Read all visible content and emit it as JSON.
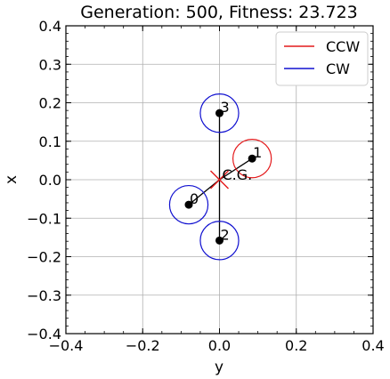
{
  "chart_data": {
    "type": "scatter",
    "title": "Generation: 500, Fitness: 23.723",
    "xlabel": "y",
    "ylabel": "x",
    "xlim": [
      -0.4,
      0.4
    ],
    "ylim": [
      -0.4,
      0.4
    ],
    "xticks": [
      -0.4,
      -0.2,
      0.0,
      0.2,
      0.4
    ],
    "yticks": [
      -0.4,
      -0.3,
      -0.2,
      -0.1,
      0.0,
      0.1,
      0.2,
      0.3,
      0.4
    ],
    "xtick_labels": [
      "−0.4",
      "−0.2",
      "0.0",
      "0.2",
      "0.4"
    ],
    "ytick_labels": [
      "−0.4",
      "−0.3",
      "−0.2",
      "−0.1",
      "0.0",
      "0.1",
      "0.2",
      "0.3",
      "0.4"
    ],
    "grid": true,
    "legend_position": "top-right",
    "legend": [
      {
        "label": "CCW",
        "color": "#e41a1c"
      },
      {
        "label": "CW",
        "color": "#1010d0"
      }
    ],
    "center_of_gravity": {
      "x": 0.0,
      "y": 0.0,
      "label": "C.G."
    },
    "rotor_radius": 0.05,
    "rotors": [
      {
        "id": "0",
        "x": -0.08,
        "y": -0.065,
        "direction": "CW"
      },
      {
        "id": "1",
        "x": 0.085,
        "y": 0.055,
        "direction": "CCW"
      },
      {
        "id": "2",
        "x": 0.0,
        "y": -0.158,
        "direction": "CW"
      },
      {
        "id": "3",
        "x": 0.0,
        "y": 0.173,
        "direction": "CW"
      }
    ],
    "colors": {
      "CCW": "#e41a1c",
      "CW": "#1010d0",
      "arm": "#000000",
      "cg_marker": "#e41a1c",
      "grid": "#b0b0b0"
    }
  }
}
